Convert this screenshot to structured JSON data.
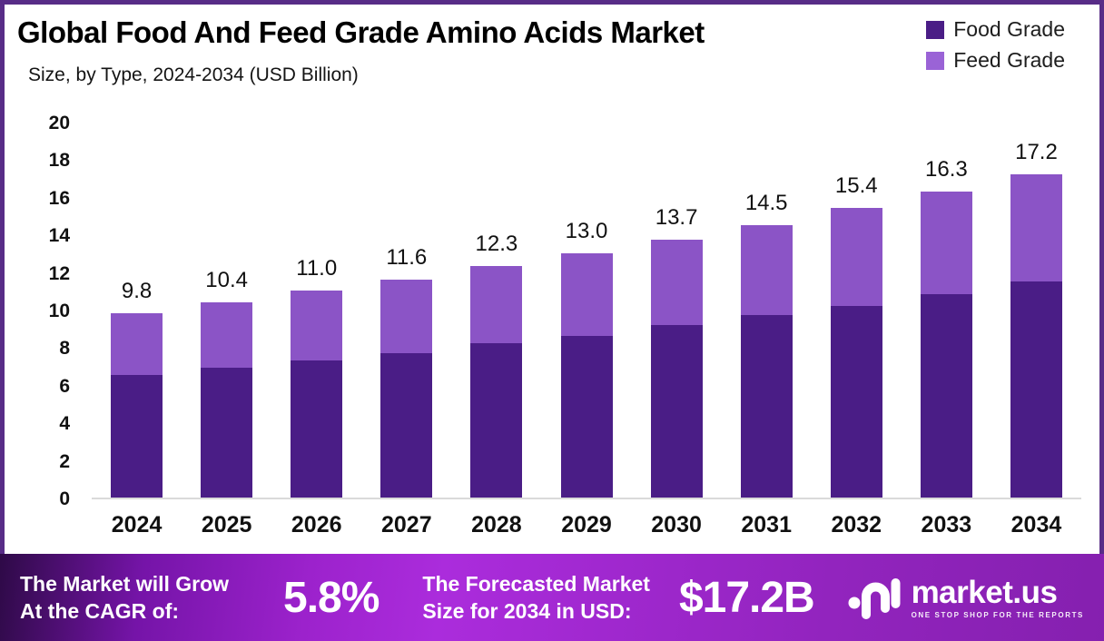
{
  "header": {
    "title": "Global Food And Feed Grade Amino Acids Market",
    "subtitle": "Size, by Type, 2024-2034 (USD Billion)"
  },
  "legend": {
    "items": [
      {
        "label": "Food Grade",
        "color": "#4A1D86"
      },
      {
        "label": "Feed Grade",
        "color": "#8B54C6"
      }
    ]
  },
  "chart_data": {
    "type": "bar",
    "stacked": true,
    "title": "Global Food And Feed Grade Amino Acids Market Size, by Type, 2024-2034 (USD Billion)",
    "categories": [
      "2024",
      "2025",
      "2026",
      "2027",
      "2028",
      "2029",
      "2030",
      "2031",
      "2032",
      "2033",
      "2034"
    ],
    "series": [
      {
        "name": "Food Grade",
        "color": "#4A1D86",
        "values": [
          6.5,
          6.9,
          7.3,
          7.7,
          8.2,
          8.6,
          9.2,
          9.7,
          10.2,
          10.8,
          11.5
        ]
      },
      {
        "name": "Feed Grade",
        "color": "#8B54C6",
        "values": [
          3.3,
          3.5,
          3.7,
          3.9,
          4.1,
          4.4,
          4.5,
          4.8,
          5.2,
          5.5,
          5.7
        ]
      }
    ],
    "totals": [
      9.8,
      10.4,
      11.0,
      11.6,
      12.3,
      13.0,
      13.7,
      14.5,
      15.4,
      16.3,
      17.2
    ],
    "total_labels": [
      "9.8",
      "10.4",
      "11.0",
      "11.6",
      "12.3",
      "13.0",
      "13.7",
      "14.5",
      "15.4",
      "16.3",
      "17.2"
    ],
    "xlabel": "",
    "ylabel": "",
    "ylim": [
      0,
      20
    ],
    "yticks": [
      0,
      2,
      4,
      6,
      8,
      10,
      12,
      14,
      16,
      18,
      20
    ],
    "grid": false,
    "legend_position": "top-right"
  },
  "banner": {
    "cagr_label_line1": "The Market will Grow",
    "cagr_label_line2": "At the CAGR of:",
    "cagr_value": "5.8%",
    "forecast_label_line1": "The Forecasted Market",
    "forecast_label_line2": "Size for 2034 in USD:",
    "forecast_value": "$17.2B",
    "logo_name": "market.us",
    "logo_tagline": "ONE STOP SHOP FOR THE REPORTS"
  },
  "colors": {
    "food_grade": "#4A1D86",
    "feed_grade": "#8B54C6",
    "frame_border": "#582C87",
    "axis_line": "#DADADA",
    "banner_gradient_dark": "#2E0A47",
    "banner_gradient_bright": "#AB2CDC",
    "banner_gradient_end": "#8520AF"
  }
}
